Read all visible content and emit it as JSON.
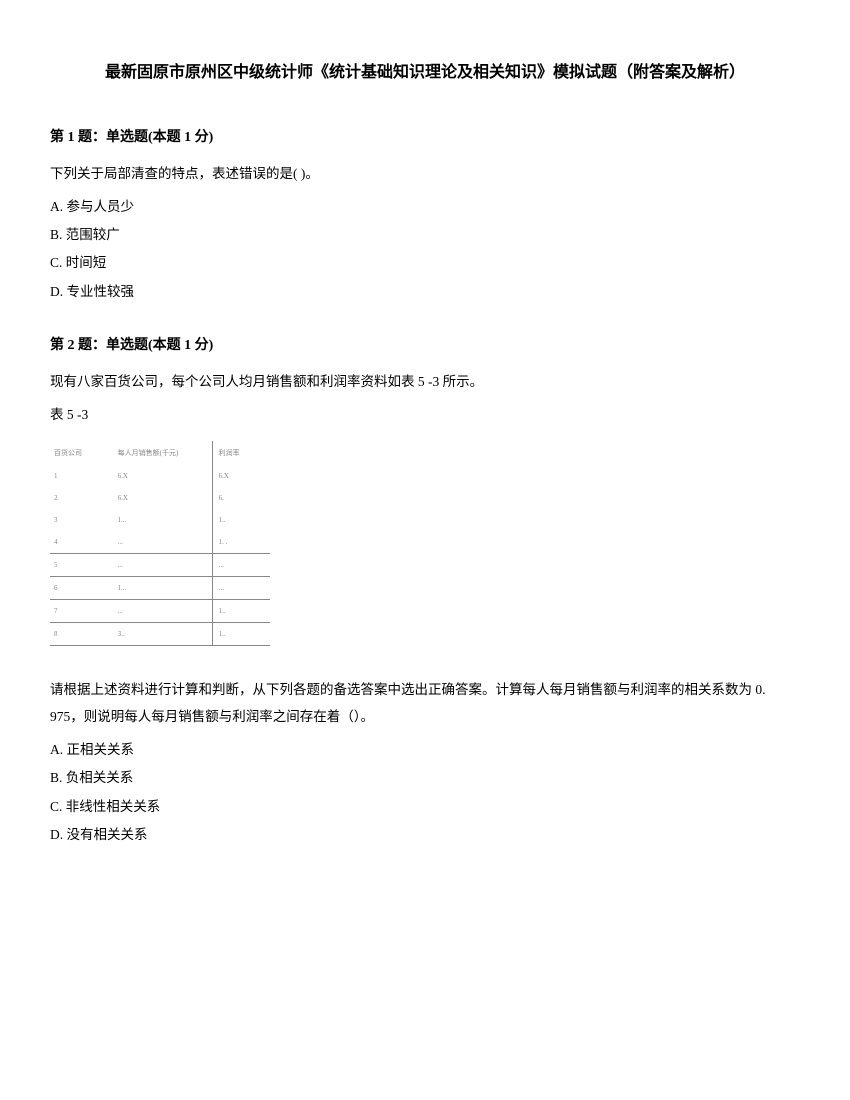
{
  "title": "最新固原市原州区中级统计师《统计基础知识理论及相关知识》模拟试题（附答案及解析）",
  "q1": {
    "header": "第 1 题：单选题(本题 1 分)",
    "text": "下列关于局部清查的特点，表述错误的是( )。",
    "optA": "A. 参与人员少",
    "optB": "B. 范围较广",
    "optC": "C. 时间短",
    "optD": "D. 专业性较强"
  },
  "q2": {
    "header": "第 2 题：单选题(本题 1 分)",
    "intro": "现有八家百货公司，每个公司人均月销售额和利润率资料如表 5 -3 所示。",
    "tableLabel": "表 5 -3",
    "tableHeaders": [
      "百货公司",
      "每人月销售额(千元)",
      "利润率"
    ],
    "tableRows": [
      [
        "1",
        "6.X",
        "6.X"
      ],
      [
        "2",
        "6.X",
        "6."
      ],
      [
        "3",
        "1...",
        "1.."
      ],
      [
        "4",
        "...",
        "1. ."
      ],
      [
        "5",
        "...",
        "..."
      ],
      [
        "6",
        "1...",
        "..."
      ],
      [
        "7",
        "...",
        "1.."
      ],
      [
        "8",
        "3..",
        "1.."
      ]
    ],
    "followup": "请根据上述资料进行计算和判断，从下列各题的备选答案中选出正确答案。计算每人每月销售额与利润率的相关系数为 0. 975，则说明每人每月销售额与利润率之间存在着（）。",
    "optA": "A. 正相关关系",
    "optB": "B. 负相关关系",
    "optC": "C. 非线性相关关系",
    "optD": "D. 没有相关关系"
  }
}
